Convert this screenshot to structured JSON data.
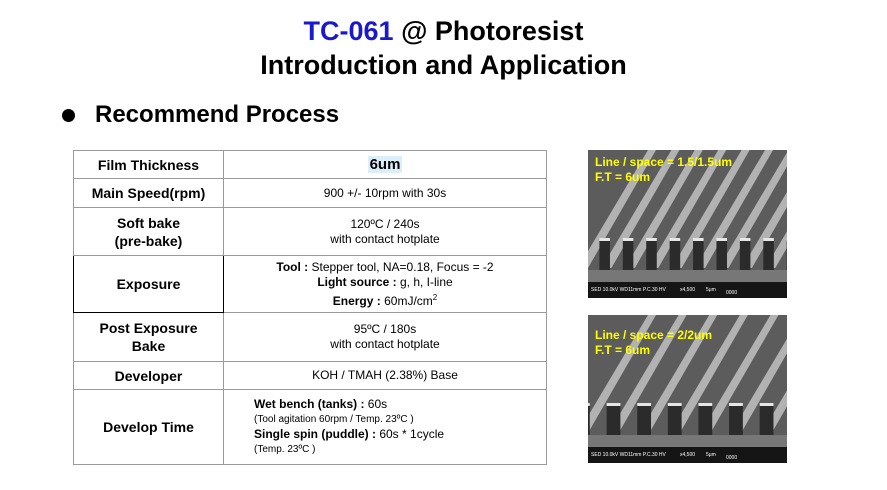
{
  "title": {
    "code": "TC-061",
    "rest": " @ Photoresist",
    "line2": "Introduction and Application"
  },
  "section": {
    "heading": "Recommend Process"
  },
  "rows": {
    "film": {
      "label": "Film Thickness",
      "value": "6um"
    },
    "speed": {
      "label": "Main Speed(rpm)",
      "value": "900 +/- 10rpm with 30s"
    },
    "soft": {
      "label1": "Soft bake",
      "label2": "(pre-bake)",
      "v1": "120ºC / 240s",
      "v2": "with contact hotplate"
    },
    "exposure": {
      "label": "Exposure",
      "tool_k": "Tool : ",
      "tool_v": "Stepper tool, NA=0.18, Focus = -2",
      "light_k": "Light source : ",
      "light_v": "g, h, I-line",
      "energy_k": "Energy : ",
      "energy_v": "60mJ/cm",
      "energy_sup": "2"
    },
    "peb": {
      "label1": "Post Exposure",
      "label2": "Bake",
      "v1": "95ºC / 180s",
      "v2": "with contact hotplate"
    },
    "developer": {
      "label": "Developer",
      "value": "KOH / TMAH (2.38%) Base"
    },
    "devtime": {
      "label": "Develop Time",
      "wet_k": "Wet bench (tanks) : ",
      "wet_v": "60s",
      "wet_note": "(Tool agitation 60rpm / Temp. 23ºC )",
      "spin_k": "Single spin (puddle) : ",
      "spin_v": "60s * 1cycle",
      "spin_note": "(Temp. 23ºC )"
    }
  },
  "sem1": {
    "cap1": "Line / space = 1.5/1.5um",
    "cap2": "F.T = 6um",
    "bar": {
      "a": "SED 10.0kV WD11mm P.C.30 HV",
      "b": "x4,500",
      "c": "5μm",
      "d": "0000"
    }
  },
  "sem2": {
    "cap1": "Line / space = 2/2um",
    "cap2": "F.T = 6um",
    "bar": {
      "a": "SED 10.0kV WD11mm P.C.30 HV",
      "b": "x4,500",
      "c": "5μm",
      "d": "0000"
    }
  }
}
